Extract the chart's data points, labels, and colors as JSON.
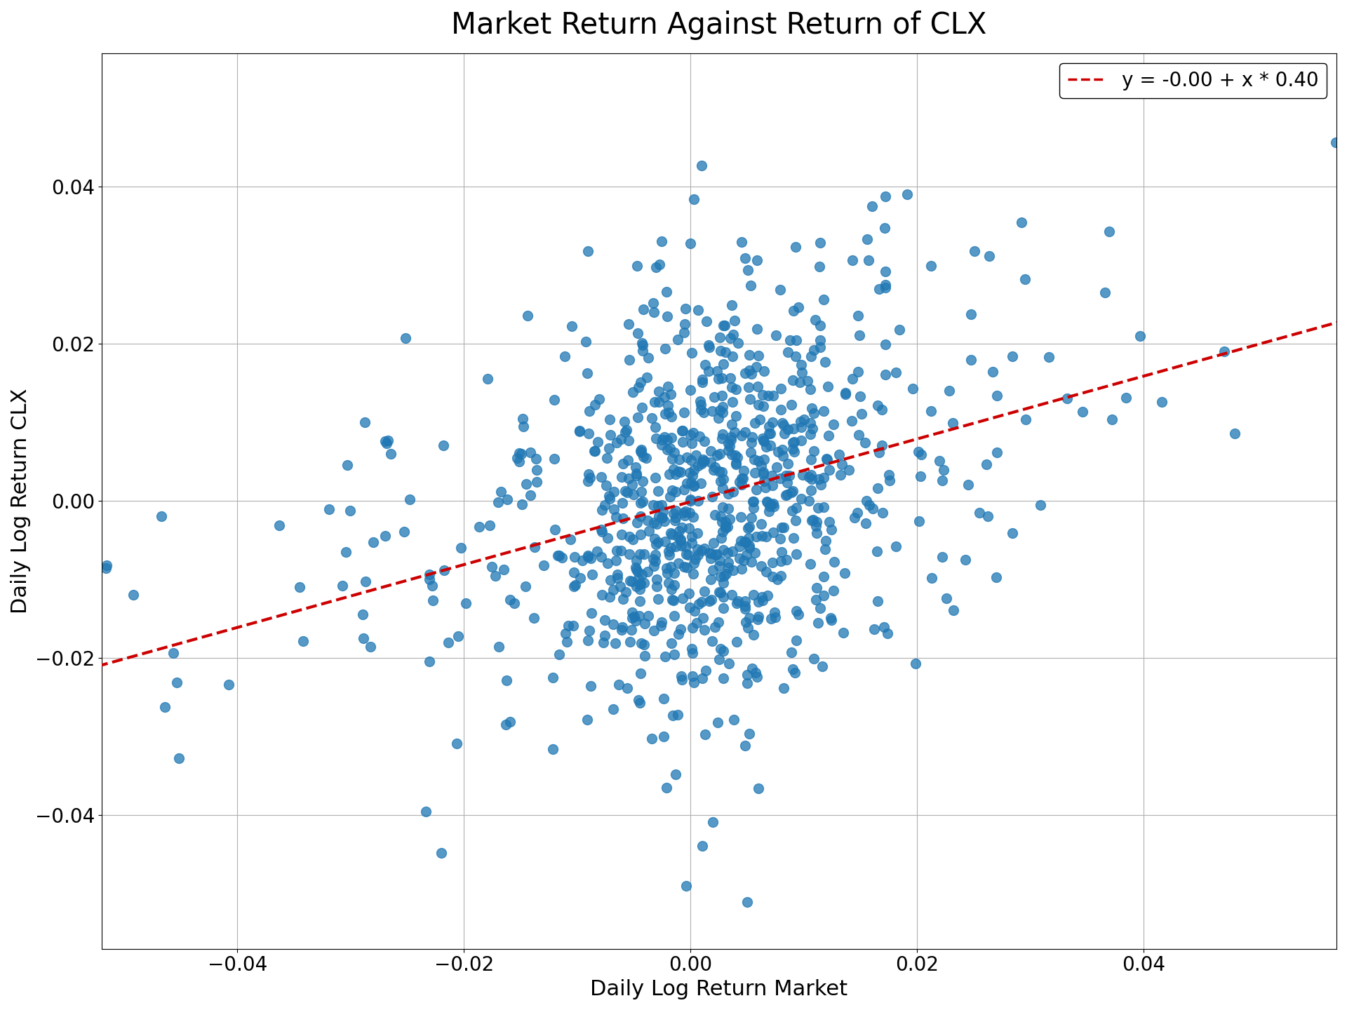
{
  "title": "Market Return Against Return of CLX",
  "xlabel": "Daily Log Return Market",
  "ylabel": "Daily Log Return CLX",
  "legend_label": "y = -0.00 + x * 0.40",
  "intercept": -0.0001,
  "slope": 0.4,
  "xlim": [
    -0.052,
    0.057
  ],
  "ylim": [
    -0.057,
    0.057
  ],
  "dot_color": "#1f77b4",
  "line_color": "#cc0000",
  "dot_size": 100,
  "dot_alpha": 0.75,
  "title_fontsize": 30,
  "label_fontsize": 22,
  "tick_fontsize": 20,
  "legend_fontsize": 20,
  "n_points": 900,
  "random_seed": 12345,
  "market_std": 0.01,
  "idiosync_std": 0.013
}
